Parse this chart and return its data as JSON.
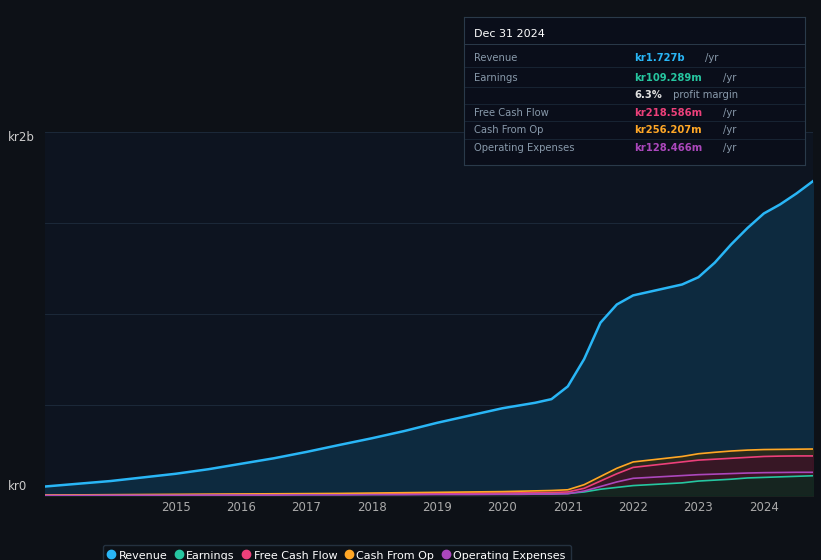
{
  "bg_color": "#0d1117",
  "chart_bg": "#0d1420",
  "grid_color": "#1e2d3d",
  "title_box_bg": "#0a0e1a",
  "title_box_border": "#2a3a4a",
  "years": [
    2013,
    2013.5,
    2014,
    2014.5,
    2015,
    2015.5,
    2016,
    2016.5,
    2017,
    2017.5,
    2018,
    2018.5,
    2019,
    2019.5,
    2020,
    2020.25,
    2020.5,
    2020.75,
    2021,
    2021.25,
    2021.5,
    2021.75,
    2022,
    2022.25,
    2022.5,
    2022.75,
    2023,
    2023.25,
    2023.5,
    2023.75,
    2024,
    2024.25,
    2024.5,
    2024.75
  ],
  "revenue": [
    50,
    65,
    80,
    100,
    120,
    145,
    175,
    205,
    240,
    278,
    315,
    355,
    400,
    440,
    480,
    495,
    510,
    530,
    600,
    750,
    950,
    1050,
    1100,
    1120,
    1140,
    1160,
    1200,
    1280,
    1380,
    1470,
    1550,
    1600,
    1660,
    1727
  ],
  "earnings": [
    2,
    2.5,
    3,
    3.5,
    4,
    4.5,
    5,
    5.5,
    6,
    6.5,
    7,
    7.5,
    8,
    8.5,
    9,
    9.5,
    10,
    10.5,
    12,
    20,
    35,
    45,
    55,
    60,
    65,
    70,
    80,
    85,
    90,
    97,
    100,
    103,
    106,
    109
  ],
  "free_cash_flow": [
    2,
    2.5,
    3,
    3.5,
    4,
    5,
    6,
    7,
    8,
    9,
    10,
    11,
    12,
    13,
    14,
    15,
    16,
    17,
    20,
    40,
    80,
    120,
    155,
    165,
    175,
    185,
    195,
    200,
    205,
    210,
    215,
    217,
    218,
    218
  ],
  "cash_from_op": [
    3,
    4,
    5,
    6,
    7,
    8,
    9,
    10,
    11,
    12,
    14,
    16,
    18,
    20,
    22,
    24,
    26,
    28,
    32,
    60,
    105,
    150,
    185,
    195,
    205,
    215,
    230,
    238,
    245,
    250,
    253,
    254,
    255,
    256
  ],
  "operating_expenses": [
    1,
    1,
    2,
    2,
    2,
    3,
    3,
    3,
    4,
    4,
    5,
    5,
    6,
    6,
    7,
    7,
    8,
    8,
    10,
    25,
    50,
    75,
    95,
    100,
    105,
    110,
    115,
    118,
    121,
    124,
    126,
    127,
    128,
    128
  ],
  "series_colors": {
    "revenue": "#29b6f6",
    "earnings": "#26c6a0",
    "free_cash_flow": "#ec407a",
    "cash_from_op": "#ffa726",
    "operating_expenses": "#ab47bc"
  },
  "fill_colors": {
    "revenue": "#0d2a3f",
    "earnings": "#0d2a20",
    "free_cash_flow": "#3d1028",
    "cash_from_op": "#3d2a08",
    "operating_expenses": "#2a0d38"
  },
  "ylim": [
    0,
    2000
  ],
  "ytick_positions": [
    0,
    500,
    1000,
    1500,
    2000
  ],
  "ytick_labels": [
    "",
    "",
    "",
    "",
    ""
  ],
  "ylabel_top": "kr2b",
  "ylabel_bottom": "kr0",
  "xtick_years": [
    2015,
    2016,
    2017,
    2018,
    2019,
    2020,
    2021,
    2022,
    2023,
    2024
  ],
  "legend_items": [
    {
      "label": "Revenue",
      "color": "#29b6f6"
    },
    {
      "label": "Earnings",
      "color": "#26c6a0"
    },
    {
      "label": "Free Cash Flow",
      "color": "#ec407a"
    },
    {
      "label": "Cash From Op",
      "color": "#ffa726"
    },
    {
      "label": "Operating Expenses",
      "color": "#ab47bc"
    }
  ],
  "info_box": {
    "date": "Dec 31 2024",
    "rows": [
      {
        "label": "Revenue",
        "value": "kr1.727b",
        "unit": "/yr",
        "value_color": "#29b6f6"
      },
      {
        "label": "Earnings",
        "value": "kr109.289m",
        "unit": "/yr",
        "value_color": "#26c6a0"
      },
      {
        "label": "",
        "value": "6.3%",
        "unit": " profit margin",
        "value_color": "#e0e0e0"
      },
      {
        "label": "Free Cash Flow",
        "value": "kr218.586m",
        "unit": "/yr",
        "value_color": "#ec407a"
      },
      {
        "label": "Cash From Op",
        "value": "kr256.207m",
        "unit": "/yr",
        "value_color": "#ffa726"
      },
      {
        "label": "Operating Expenses",
        "value": "kr128.466m",
        "unit": "/yr",
        "value_color": "#ab47bc"
      }
    ]
  }
}
